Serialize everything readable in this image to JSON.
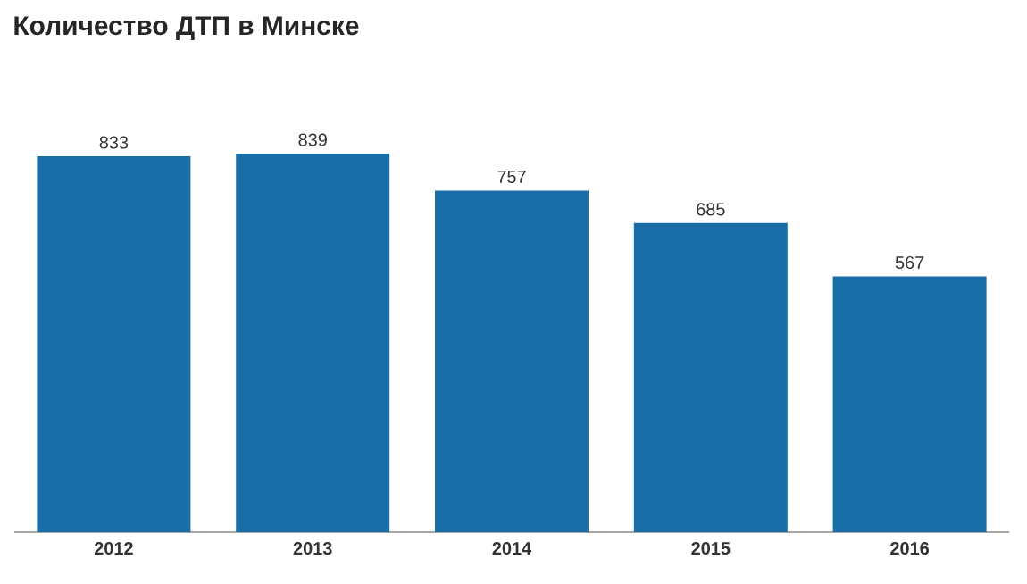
{
  "chart_data": {
    "type": "bar",
    "title": "Количество ДТП в Минске",
    "categories": [
      "2012",
      "2013",
      "2014",
      "2015",
      "2016"
    ],
    "values": [
      833,
      839,
      757,
      685,
      567
    ],
    "color": "#1a6ea8",
    "data_labels": true
  }
}
